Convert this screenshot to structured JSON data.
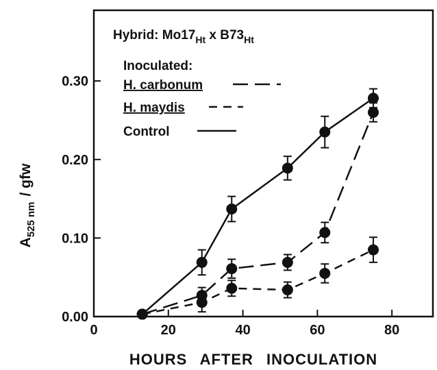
{
  "chart_data": {
    "type": "line",
    "ylabel": {
      "main": "A",
      "sub": "525 nm",
      "rest": "/ gfw"
    },
    "xlabel": "HOURS AFTER INOCULATION",
    "annotation": {
      "parts": [
        "Hybrid: Mo17",
        "Ht",
        " x B73",
        "Ht"
      ]
    },
    "legend_title": "Inoculated:",
    "x": [
      13,
      29,
      37,
      52,
      62,
      75
    ],
    "series": [
      {
        "name": "H. carbonum",
        "color": "#111111",
        "dash": "22 10",
        "underline": true,
        "values": [
          0.003,
          0.027,
          0.061,
          0.069,
          0.107,
          0.26
        ],
        "errors": [
          null,
          0.01,
          0.012,
          0.01,
          0.013,
          0.012
        ]
      },
      {
        "name": "H. maydis",
        "color": "#111111",
        "dash": "12 9",
        "underline": true,
        "values": [
          0.003,
          0.018,
          0.036,
          0.034,
          0.055,
          0.085
        ],
        "errors": [
          null,
          0.012,
          0.01,
          0.01,
          0.012,
          0.016
        ]
      },
      {
        "name": "Control",
        "color": "#111111",
        "dash": null,
        "underline": false,
        "values": [
          0.003,
          0.069,
          0.137,
          0.189,
          0.235,
          0.278
        ],
        "errors": [
          null,
          0.016,
          0.016,
          0.015,
          0.02,
          0.012
        ]
      }
    ],
    "xlim": [
      0,
      91
    ],
    "ylim": [
      0,
      0.39
    ],
    "xticks": [
      0,
      20,
      40,
      60,
      80
    ],
    "yticks": [
      {
        "value": 0,
        "label": "0.00"
      },
      {
        "value": 0.1,
        "label": "0.10"
      },
      {
        "value": 0.2,
        "label": "0.20"
      },
      {
        "value": 0.3,
        "label": "0.30"
      }
    ]
  }
}
